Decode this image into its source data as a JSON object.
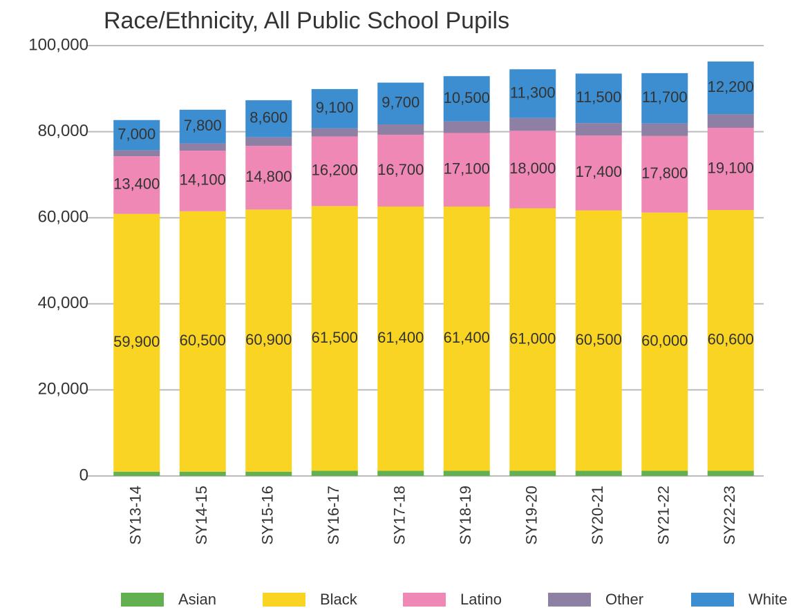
{
  "chart_data": {
    "type": "stacked_bar",
    "title": "Race/Ethnicity, All Public School Pupils",
    "categories": [
      "SY13-14",
      "SY14-15",
      "SY15-16",
      "SY16-17",
      "SY17-18",
      "SY18-19",
      "SY19-20",
      "SY20-21",
      "SY21-22",
      "SY22-23"
    ],
    "series": [
      {
        "name": "Asian",
        "color": "#62b04f",
        "values": [
          1000,
          1000,
          1000,
          1200,
          1200,
          1200,
          1200,
          1200,
          1200,
          1200
        ]
      },
      {
        "name": "Black",
        "color": "#f9d423",
        "values": [
          59900,
          60500,
          60900,
          61500,
          61400,
          61400,
          61000,
          60500,
          60000,
          60600
        ],
        "value_labels": [
          "59,900",
          "60,500",
          "60,900",
          "61,500",
          "61,400",
          "61,400",
          "61,000",
          "60,500",
          "60,000",
          "60,600"
        ]
      },
      {
        "name": "Latino",
        "color": "#f088b5",
        "values": [
          13400,
          14100,
          14800,
          16200,
          16700,
          17100,
          18000,
          17400,
          17800,
          19100
        ],
        "value_labels": [
          "13,400",
          "14,100",
          "14,800",
          "16,200",
          "16,700",
          "17,100",
          "18,000",
          "17,400",
          "17,800",
          "19,100"
        ]
      },
      {
        "name": "Other",
        "color": "#8e7fa4",
        "values": [
          1400,
          1700,
          2000,
          1900,
          2400,
          2700,
          3000,
          2900,
          2900,
          3200
        ]
      },
      {
        "name": "White",
        "color": "#3d8ed0",
        "values": [
          7000,
          7800,
          8600,
          9100,
          9700,
          10500,
          11300,
          11500,
          11700,
          12200
        ],
        "value_labels": [
          "7,000",
          "7,800",
          "8,600",
          "9,100",
          "9,700",
          "10,500",
          "11,300",
          "11,500",
          "11,700",
          "12,200"
        ]
      }
    ],
    "ylim": [
      0,
      100000
    ],
    "yticks": [
      0,
      {
        "value": 20000,
        "label": "20,000"
      },
      {
        "value": 40000,
        "label": "40,000"
      },
      {
        "value": 60000,
        "label": "60,000"
      },
      {
        "value": 80000,
        "label": "80,000"
      },
      {
        "value": 100000,
        "label": "100,000"
      }
    ],
    "grid": true,
    "legend": "bottom"
  }
}
